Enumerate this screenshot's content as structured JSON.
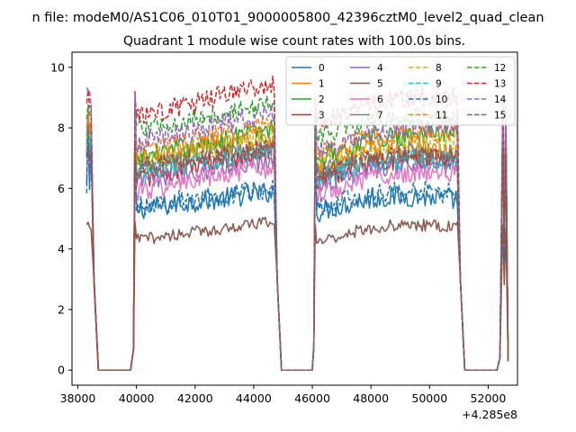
{
  "figure": {
    "suptitle": "n file: modeM0/AS1C06_010T01_9000005800_42396cztM0_level2_quad_clean",
    "subtitle": "Quadrant 1 module wise count rates with 100.0s bins."
  },
  "chart_data": {
    "type": "line",
    "title": "Quadrant 1 module wise count rates with 100.0s bins.",
    "xlabel": "",
    "ylabel": "",
    "x_offset_label": "+4.285e8",
    "xlim": [
      37800,
      53000
    ],
    "ylim": [
      -0.5,
      10.5
    ],
    "xticks": [
      38000,
      40000,
      42000,
      44000,
      46000,
      48000,
      50000,
      52000
    ],
    "xtick_labels": [
      "38000",
      "40000",
      "42000",
      "44000",
      "46000",
      "48000",
      "50000",
      "52000"
    ],
    "yticks": [
      0,
      2,
      4,
      6,
      8,
      10
    ],
    "ytick_labels": [
      "0",
      "2",
      "4",
      "6",
      "8",
      "10"
    ],
    "grid": false,
    "legend_position": "top-right",
    "legend_columns": 4,
    "segments": [
      {
        "start": 38300,
        "end": 38450,
        "kind": "edge"
      },
      {
        "start": 39950,
        "end": 44700,
        "kind": "orbit"
      },
      {
        "start": 46100,
        "end": 50950,
        "kind": "orbit"
      },
      {
        "start": 52500,
        "end": 52700,
        "kind": "edge"
      }
    ],
    "series": [
      {
        "name": "0",
        "color": "#1f77b4",
        "dash": "solid",
        "level_a": 5.3,
        "trend_a": 0.6,
        "level_b": 5.2,
        "trend_b": 0.4,
        "edge": 6.1,
        "spike": 8.0,
        "noise": 0.35
      },
      {
        "name": "1",
        "color": "#ff7f0e",
        "dash": "solid",
        "level_a": 6.8,
        "trend_a": 0.9,
        "level_b": 6.6,
        "trend_b": 0.6,
        "edge": 7.6,
        "spike": 8.6,
        "noise": 0.35
      },
      {
        "name": "2",
        "color": "#2ca02c",
        "dash": "solid",
        "level_a": 7.0,
        "trend_a": 1.0,
        "level_b": 7.0,
        "trend_b": 0.8,
        "edge": 7.9,
        "spike": 8.4,
        "noise": 0.35
      },
      {
        "name": "3",
        "color": "#d62728",
        "dash": "solid",
        "level_a": 6.3,
        "trend_a": 1.0,
        "level_b": 6.2,
        "trend_b": 0.8,
        "edge": 7.3,
        "spike": 8.3,
        "noise": 0.35
      },
      {
        "name": "4",
        "color": "#9467bd",
        "dash": "solid",
        "level_a": 6.2,
        "trend_a": 0.8,
        "level_b": 6.1,
        "trend_b": 0.6,
        "edge": 7.0,
        "spike": 8.2,
        "noise": 0.35
      },
      {
        "name": "5",
        "color": "#8c564b",
        "dash": "solid",
        "level_a": 4.3,
        "trend_a": 0.6,
        "level_b": 4.2,
        "trend_b": 0.5,
        "edge": 4.7,
        "spike": 4.9,
        "noise": 0.2
      },
      {
        "name": "6",
        "color": "#e377c2",
        "dash": "solid",
        "level_a": 5.9,
        "trend_a": 0.8,
        "level_b": 5.8,
        "trend_b": 0.7,
        "edge": 6.6,
        "spike": 8.1,
        "noise": 0.35
      },
      {
        "name": "7",
        "color": "#7f7f7f",
        "dash": "solid",
        "level_a": 6.6,
        "trend_a": 0.8,
        "level_b": 6.5,
        "trend_b": 0.6,
        "edge": 7.2,
        "spike": 8.5,
        "noise": 0.35
      },
      {
        "name": "8",
        "color": "#bcbd22",
        "dash": "dashed",
        "level_a": 6.9,
        "trend_a": 0.9,
        "level_b": 6.8,
        "trend_b": 0.7,
        "edge": 7.5,
        "spike": 8.5,
        "noise": 0.35
      },
      {
        "name": "9",
        "color": "#17becf",
        "dash": "dashed",
        "level_a": 6.5,
        "trend_a": 0.8,
        "level_b": 6.3,
        "trend_b": 0.6,
        "edge": 7.1,
        "spike": 8.3,
        "noise": 0.35
      },
      {
        "name": "10",
        "color": "#1f77b4",
        "dash": "dashed",
        "level_a": 5.4,
        "trend_a": 0.6,
        "level_b": 5.3,
        "trend_b": 0.5,
        "edge": 5.9,
        "spike": 8.0,
        "noise": 0.35
      },
      {
        "name": "11",
        "color": "#ff7f0e",
        "dash": "dashed",
        "level_a": 7.2,
        "trend_a": 1.0,
        "level_b": 7.1,
        "trend_b": 0.7,
        "edge": 7.8,
        "spike": 8.7,
        "noise": 0.35
      },
      {
        "name": "12",
        "color": "#2ca02c",
        "dash": "dashed",
        "level_a": 7.9,
        "trend_a": 0.9,
        "level_b": 7.7,
        "trend_b": 0.6,
        "edge": 8.3,
        "spike": 8.8,
        "noise": 0.3
      },
      {
        "name": "13",
        "color": "#d62728",
        "dash": "dashed",
        "level_a": 8.3,
        "trend_a": 1.2,
        "level_b": 8.2,
        "trend_b": 0.8,
        "edge": 8.8,
        "spike": 9.2,
        "noise": 0.35
      },
      {
        "name": "14",
        "color": "#9467bd",
        "dash": "dashed",
        "level_a": 7.5,
        "trend_a": 1.0,
        "level_b": 7.3,
        "trend_b": 0.7,
        "edge": 9.3,
        "spike": 9.1,
        "noise": 0.35
      },
      {
        "name": "15",
        "color": "#8c564b",
        "dash": "dashed",
        "level_a": 6.7,
        "trend_a": 0.7,
        "level_b": 6.5,
        "trend_b": 0.5,
        "edge": 7.0,
        "spike": 7.5,
        "noise": 0.3
      }
    ]
  }
}
